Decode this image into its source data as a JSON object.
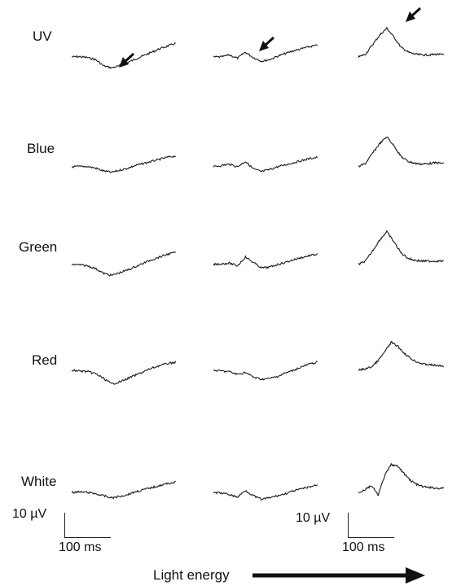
{
  "chart_data": {
    "type": "line",
    "title": "",
    "rows": [
      "UV",
      "Blue",
      "Green",
      "Red",
      "White"
    ],
    "columns_caption": "Light energy",
    "scale_bars": [
      {
        "amplitude": "10 µV",
        "time": "100 ms"
      },
      {
        "amplitude": "10 µV",
        "time": "100 ms"
      }
    ],
    "units": {
      "x": "ms",
      "y": "µV"
    },
    "duration_ms": 240,
    "series": [
      {
        "row": "UV",
        "column": 1,
        "values": [
          0,
          0.5,
          -1,
          -4,
          -13,
          -16,
          -13,
          -8,
          -3,
          2,
          7,
          12,
          16,
          20
        ]
      },
      {
        "row": "UV",
        "column": 2,
        "values": [
          0,
          0,
          3,
          -2,
          7,
          -1,
          -6,
          -4,
          1,
          5,
          9,
          12,
          15,
          17
        ]
      },
      {
        "row": "UV",
        "column": 3,
        "values": [
          0,
          4,
          18,
          32,
          42,
          29,
          14,
          7,
          4,
          3,
          3,
          4,
          3
        ]
      },
      {
        "row": "Blue",
        "column": 1,
        "values": [
          0,
          0.5,
          0.5,
          -2,
          -6,
          -8,
          -5,
          -2,
          2,
          5,
          8,
          11,
          14,
          16
        ]
      },
      {
        "row": "Blue",
        "column": 2,
        "values": [
          0,
          2,
          4,
          0,
          8,
          -3,
          -7,
          -4,
          0,
          3,
          6,
          9,
          12,
          14
        ]
      },
      {
        "row": "Blue",
        "column": 3,
        "values": [
          0,
          5,
          20,
          34,
          44,
          31,
          15,
          8,
          5,
          4,
          5,
          6,
          5
        ]
      },
      {
        "row": "Green",
        "column": 1,
        "values": [
          0,
          -0.5,
          -2,
          -6,
          -13,
          -16,
          -12,
          -8,
          -3,
          2,
          7,
          11,
          15,
          18
        ]
      },
      {
        "row": "Green",
        "column": 2,
        "values": [
          0,
          1,
          2,
          -2,
          11,
          3,
          -5,
          -4,
          0,
          3,
          7,
          10,
          13,
          15
        ]
      },
      {
        "row": "Green",
        "column": 3,
        "values": [
          0,
          5,
          20,
          36,
          48,
          33,
          17,
          9,
          6,
          5,
          5,
          5,
          5
        ]
      },
      {
        "row": "Red",
        "column": 1,
        "values": [
          0,
          -1,
          -2,
          -5,
          -12,
          -20,
          -17,
          -12,
          -7,
          -2,
          3,
          7,
          10,
          12
        ]
      },
      {
        "row": "Red",
        "column": 2,
        "values": [
          0,
          -1,
          -2,
          -6,
          -3,
          -10,
          -13,
          -12,
          -9,
          -4,
          0,
          5,
          9,
          12
        ]
      },
      {
        "row": "Red",
        "column": 3,
        "values": [
          0,
          2,
          5,
          14,
          27,
          41,
          35,
          25,
          17,
          12,
          9,
          8,
          7,
          6
        ]
      },
      {
        "row": "White",
        "column": 1,
        "values": [
          0,
          0.5,
          0,
          -2,
          -5,
          -8,
          -6,
          -3,
          1,
          4,
          7,
          10,
          13,
          15
        ]
      },
      {
        "row": "White",
        "column": 2,
        "values": [
          0,
          -1,
          -3,
          -7,
          3,
          -5,
          -10,
          -8,
          -5,
          -2,
          2,
          5,
          8,
          11
        ]
      },
      {
        "row": "White",
        "column": 3,
        "values": [
          0,
          4,
          10,
          -4,
          24,
          41,
          38,
          27,
          17,
          11,
          8,
          7,
          6,
          6
        ]
      }
    ],
    "arrows": [
      {
        "row": "UV",
        "column": 1
      },
      {
        "row": "UV",
        "column": 2
      },
      {
        "row": "UV",
        "column": 3
      }
    ],
    "grid": false,
    "legend": "none"
  }
}
